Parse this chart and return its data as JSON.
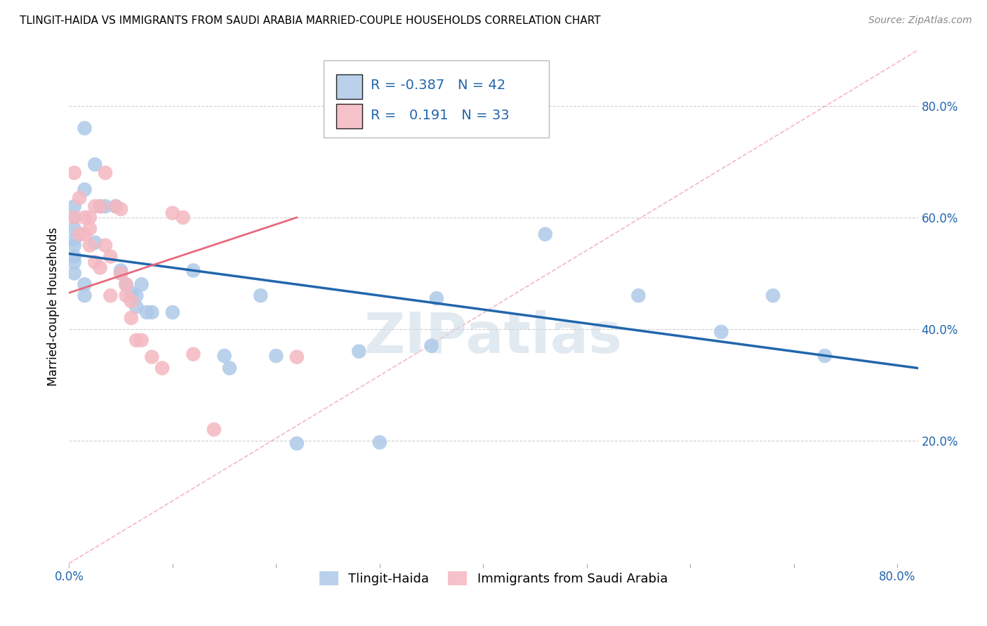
{
  "title": "TLINGIT-HAIDA VS IMMIGRANTS FROM SAUDI ARABIA MARRIED-COUPLE HOUSEHOLDS CORRELATION CHART",
  "source": "Source: ZipAtlas.com",
  "ylabel": "Married-couple Households",
  "right_yticks": [
    "80.0%",
    "60.0%",
    "40.0%",
    "20.0%"
  ],
  "right_ytick_vals": [
    0.8,
    0.6,
    0.4,
    0.2
  ],
  "xlim": [
    0.0,
    0.82
  ],
  "ylim": [
    -0.02,
    0.9
  ],
  "watermark": "ZIPatlas",
  "blue_r": -0.387,
  "blue_n": 42,
  "pink_r": 0.191,
  "pink_n": 33,
  "blue_color": "#aec9e8",
  "pink_color": "#f4b8c1",
  "blue_line_color": "#2166ac",
  "pink_line_color": "#e8697d",
  "dashed_line_color": "#f4b8c1",
  "blue_x": [
    0.015,
    0.025,
    0.015,
    0.005,
    0.005,
    0.005,
    0.005,
    0.005,
    0.005,
    0.005,
    0.005,
    0.015,
    0.015,
    0.025,
    0.03,
    0.035,
    0.045,
    0.05,
    0.05,
    0.055,
    0.06,
    0.065,
    0.065,
    0.07,
    0.075,
    0.08,
    0.1,
    0.12,
    0.15,
    0.155,
    0.185,
    0.2,
    0.22,
    0.28,
    0.3,
    0.35,
    0.355,
    0.46,
    0.55,
    0.63,
    0.68,
    0.73
  ],
  "blue_y": [
    0.76,
    0.695,
    0.65,
    0.62,
    0.6,
    0.58,
    0.56,
    0.55,
    0.53,
    0.52,
    0.5,
    0.48,
    0.46,
    0.555,
    0.62,
    0.62,
    0.62,
    0.505,
    0.5,
    0.48,
    0.465,
    0.46,
    0.44,
    0.48,
    0.43,
    0.43,
    0.43,
    0.505,
    0.352,
    0.33,
    0.46,
    0.352,
    0.195,
    0.36,
    0.197,
    0.37,
    0.455,
    0.57,
    0.46,
    0.395,
    0.46,
    0.352
  ],
  "pink_x": [
    0.005,
    0.005,
    0.01,
    0.01,
    0.015,
    0.015,
    0.02,
    0.02,
    0.02,
    0.025,
    0.025,
    0.03,
    0.03,
    0.035,
    0.035,
    0.04,
    0.04,
    0.045,
    0.05,
    0.05,
    0.055,
    0.055,
    0.06,
    0.06,
    0.065,
    0.07,
    0.08,
    0.09,
    0.1,
    0.11,
    0.12,
    0.14,
    0.22
  ],
  "pink_y": [
    0.68,
    0.6,
    0.635,
    0.57,
    0.6,
    0.57,
    0.6,
    0.58,
    0.55,
    0.62,
    0.52,
    0.62,
    0.51,
    0.68,
    0.55,
    0.53,
    0.46,
    0.62,
    0.615,
    0.5,
    0.48,
    0.46,
    0.45,
    0.42,
    0.38,
    0.38,
    0.35,
    0.33,
    0.608,
    0.6,
    0.355,
    0.22,
    0.35
  ],
  "legend_label_blue": "Tlingit-Haida",
  "legend_label_pink": "Immigrants from Saudi Arabia",
  "blue_line_x0": 0.0,
  "blue_line_x1": 0.82,
  "blue_line_y0": 0.535,
  "blue_line_y1": 0.33,
  "pink_line_x0": 0.0,
  "pink_line_x1": 0.22,
  "pink_line_y0": 0.465,
  "pink_line_y1": 0.6
}
